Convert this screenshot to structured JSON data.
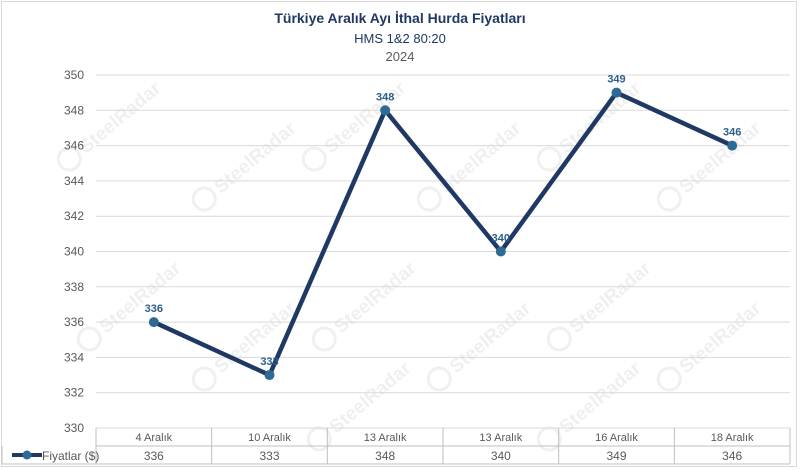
{
  "chart_data": {
    "type": "line",
    "title": "Türkiye Aralık Ayı İthal Hurda Fiyatları",
    "subtitle": "HMS 1&2 80:20",
    "subtitle2": "2024",
    "categories": [
      "4 Aralık",
      "10 Aralık",
      "13 Aralık",
      "13 Aralık",
      "16 Aralık",
      "18 Aralık"
    ],
    "series": [
      {
        "name": "Fiyatlar ($)",
        "values": [
          336,
          333,
          348,
          340,
          349,
          346
        ]
      }
    ],
    "value_labels": [
      "336",
      "333",
      "348",
      "340",
      "349",
      "346"
    ],
    "ylim": [
      330,
      350
    ],
    "yticks": [
      "330",
      "332",
      "334",
      "336",
      "338",
      "340",
      "342",
      "344",
      "346",
      "348",
      "350"
    ],
    "grid": true,
    "legend": "data-table-left",
    "series_color": "#1f3864",
    "marker_color": "#2e6a96",
    "watermark": "SteelRadar"
  }
}
